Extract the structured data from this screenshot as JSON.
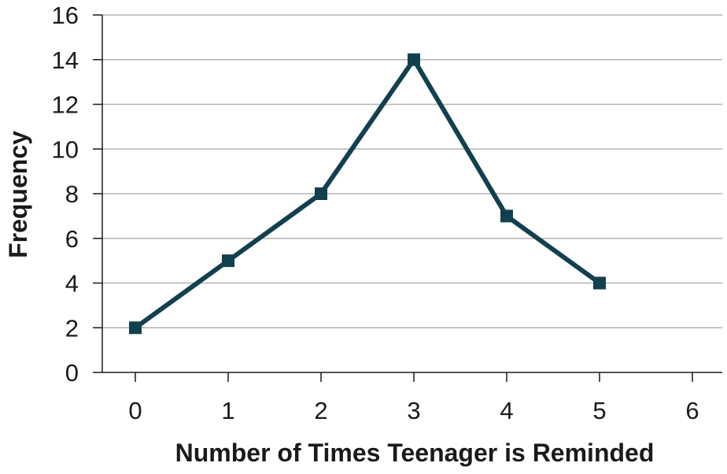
{
  "chart_data": {
    "type": "line",
    "title": "",
    "xlabel": "Number of Times Teenager is Reminded",
    "ylabel": "Frequency",
    "x": [
      0,
      1,
      2,
      3,
      4,
      5
    ],
    "series": [
      {
        "values": [
          2,
          5,
          8,
          14,
          7,
          4
        ]
      }
    ],
    "xlim": [
      0,
      6
    ],
    "ylim": [
      0,
      16
    ],
    "xticks": [
      0,
      1,
      2,
      3,
      4,
      5,
      6
    ],
    "yticks": [
      0,
      2,
      4,
      6,
      8,
      10,
      12,
      14,
      16
    ],
    "grid": "horizontal",
    "marker": "square",
    "colors": {
      "line": "#12404f",
      "grid": "#b3b3b3",
      "axis": "#1a1a1a"
    }
  }
}
